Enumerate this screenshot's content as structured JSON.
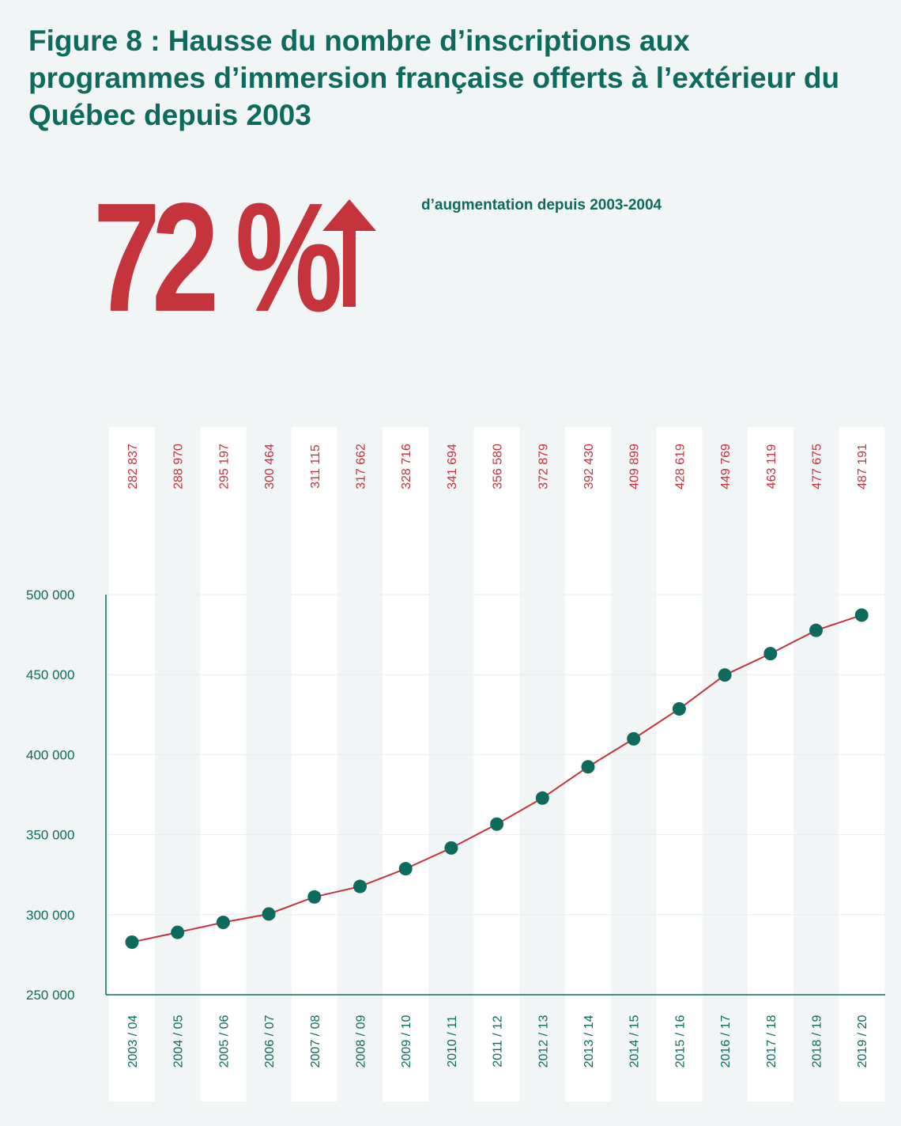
{
  "title": "Figure 8 : Hausse du nombre d’inscriptions aux programmes d’immersion française offerts à l’extérieur du Québec depuis 2003",
  "headline": {
    "value": "72 %",
    "caption": "d’augmentation depuis 2003-2004"
  },
  "colors": {
    "teal": "#0d6b5e",
    "red": "#c5333b",
    "background": "#f1f5f6"
  },
  "chart_data": {
    "type": "line",
    "title": "Hausse du nombre d’inscriptions aux programmes d’immersion française offerts à l’extérieur du Québec depuis 2003",
    "xlabel": "",
    "ylabel": "",
    "ylim": [
      250000,
      500000
    ],
    "y_ticks": [
      "250 000",
      "300 000",
      "350 000",
      "400 000",
      "450 000",
      "500 000"
    ],
    "y_tick_values": [
      250000,
      300000,
      350000,
      400000,
      450000,
      500000
    ],
    "categories": [
      "2003 / 04",
      "2004 / 05",
      "2005 / 06",
      "2006 / 07",
      "2007 / 08",
      "2008 / 09",
      "2009 / 10",
      "2010 / 11",
      "2011 / 12",
      "2012 / 13",
      "2013 / 14",
      "2014 / 15",
      "2015 / 16",
      "2016 / 17",
      "2017 / 18",
      "2018 / 19",
      "2019 / 20"
    ],
    "values": [
      282837,
      288970,
      295197,
      300464,
      311115,
      317662,
      328716,
      341694,
      356580,
      372879,
      392430,
      409899,
      428619,
      449769,
      463119,
      477675,
      487191
    ],
    "value_labels": [
      "282 837",
      "288 970",
      "295 197",
      "300 464",
      "311 115",
      "317 662",
      "328 716",
      "341 694",
      "356 580",
      "372 879",
      "392 430",
      "409 899",
      "428 619",
      "449 769",
      "463 119",
      "477 675",
      "487 191"
    ]
  }
}
